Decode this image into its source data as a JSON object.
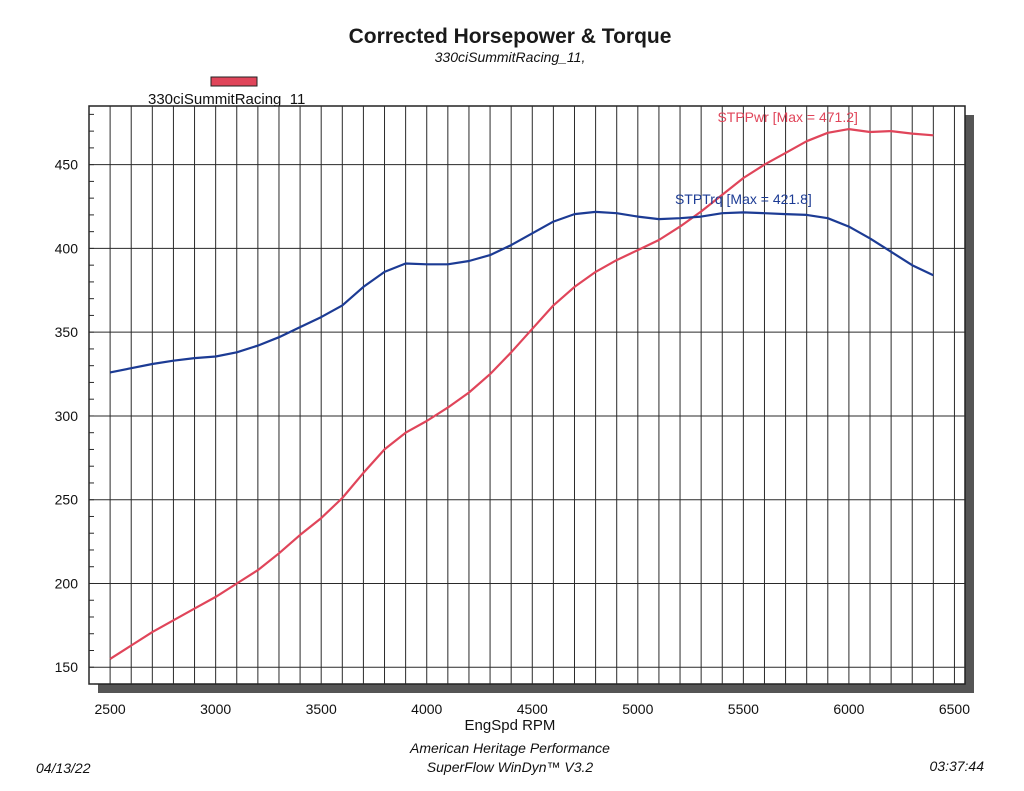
{
  "chart_data": {
    "type": "line",
    "title": "Corrected Horsepower & Torque",
    "subtitle": "330ciSummitRacing_11,",
    "xlabel": "EngSpd RPM",
    "ylabel": "",
    "xlim": [
      2400,
      6550
    ],
    "ylim": [
      140,
      485
    ],
    "xticks": [
      2500,
      3000,
      3500,
      4000,
      4500,
      5000,
      5500,
      6000,
      6500
    ],
    "yticks": [
      150,
      200,
      250,
      300,
      350,
      400,
      450
    ],
    "grid": true,
    "legend": {
      "position": "top-left",
      "label": "330ciSummitRacing_11",
      "color": "#e0455a"
    },
    "series": [
      {
        "name": "STPPwr",
        "color": "#e0455a",
        "annotation": "STPPwr [Max = 471.2]",
        "x": [
          2500,
          2600,
          2700,
          2800,
          2900,
          3000,
          3100,
          3200,
          3300,
          3400,
          3500,
          3600,
          3700,
          3800,
          3900,
          4000,
          4100,
          4200,
          4300,
          4400,
          4500,
          4600,
          4700,
          4800,
          4900,
          5000,
          5100,
          5200,
          5300,
          5400,
          5500,
          5600,
          5700,
          5800,
          5900,
          6000,
          6100,
          6200,
          6300,
          6400
        ],
        "values": [
          155,
          163,
          171,
          178,
          185,
          192,
          200,
          208,
          218,
          229,
          239,
          251,
          266,
          280,
          290,
          297,
          305,
          314,
          325,
          338,
          352,
          366,
          377,
          386,
          393,
          399,
          405,
          413,
          422,
          432,
          442,
          450,
          457,
          464,
          469,
          471.2,
          469.5,
          470,
          468.5,
          467.5
        ]
      },
      {
        "name": "STPTrq",
        "color": "#1c3b94",
        "annotation": "STPTrq [Max = 421.8]",
        "x": [
          2500,
          2600,
          2700,
          2800,
          2900,
          3000,
          3100,
          3200,
          3300,
          3400,
          3500,
          3600,
          3700,
          3800,
          3900,
          4000,
          4100,
          4200,
          4300,
          4400,
          4500,
          4600,
          4700,
          4800,
          4900,
          5000,
          5100,
          5200,
          5300,
          5400,
          5500,
          5600,
          5700,
          5800,
          5900,
          6000,
          6100,
          6200,
          6300,
          6400
        ],
        "values": [
          326,
          328.5,
          331,
          333,
          334.5,
          335.5,
          338,
          342,
          347,
          353,
          359,
          366,
          377,
          386,
          391,
          390.5,
          390.5,
          392.5,
          396,
          402,
          409,
          416,
          420.5,
          421.8,
          421,
          419,
          417.5,
          418,
          419,
          421,
          421.5,
          421,
          420.5,
          420,
          418,
          413,
          406,
          398,
          390,
          384
        ]
      }
    ]
  },
  "footer": {
    "date": "04/13/22",
    "company": "American Heritage Performance",
    "software": "SuperFlow WinDyn™ V3.2",
    "time": "03:37:44"
  }
}
